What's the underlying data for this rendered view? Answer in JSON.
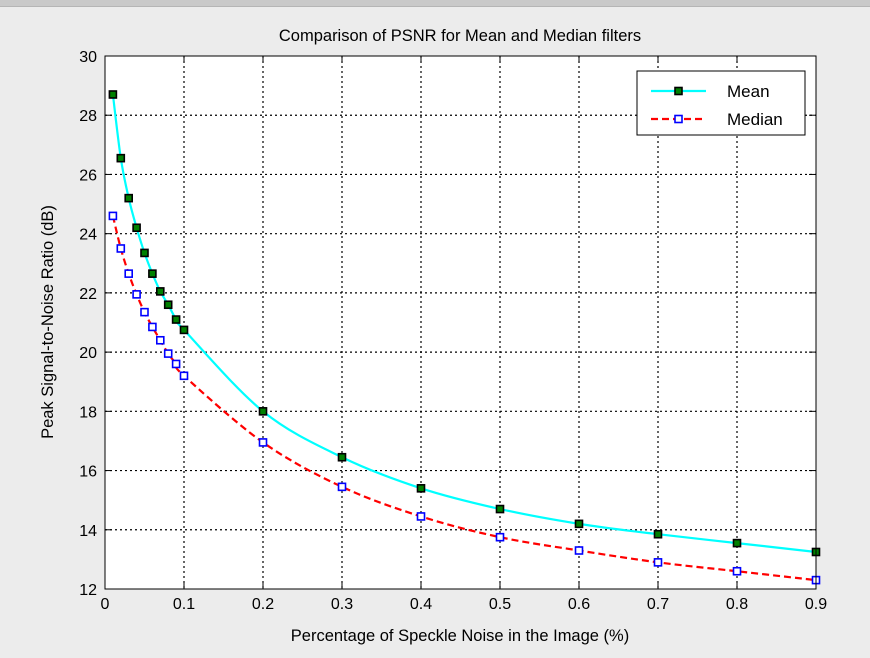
{
  "chart_data": {
    "type": "line",
    "title": "Comparison of PSNR for Mean and Median filters",
    "xlabel": "Percentage of Speckle Noise in the Image (%)",
    "ylabel": "Peak Signal-to-Noise Ratio (dB)",
    "xlim": [
      0,
      0.9
    ],
    "ylim": [
      12,
      30
    ],
    "xticks": [
      0,
      0.1,
      0.2,
      0.3,
      0.4,
      0.5,
      0.6,
      0.7,
      0.8,
      0.9
    ],
    "xtick_labels": [
      "0",
      "0.1",
      "0.2",
      "0.3",
      "0.4",
      "0.5",
      "0.6",
      "0.7",
      "0.8",
      "0.9"
    ],
    "yticks": [
      12,
      14,
      16,
      18,
      20,
      22,
      24,
      26,
      28,
      30
    ],
    "ytick_labels": [
      "12",
      "14",
      "16",
      "18",
      "20",
      "22",
      "24",
      "26",
      "28",
      "30"
    ],
    "grid": true,
    "legend_position": "top-right",
    "x": [
      0.01,
      0.02,
      0.03,
      0.04,
      0.05,
      0.06,
      0.07,
      0.08,
      0.09,
      0.1,
      0.2,
      0.3,
      0.4,
      0.5,
      0.6,
      0.7,
      0.8,
      0.9
    ],
    "series": [
      {
        "name": "Mean",
        "line_color": "#00ffff",
        "marker_edge": "#000000",
        "marker_fill": "#008000",
        "dashed": false,
        "values": [
          28.7,
          26.55,
          25.2,
          24.2,
          23.35,
          22.65,
          22.05,
          21.6,
          21.1,
          20.75,
          18.0,
          16.45,
          15.4,
          14.7,
          14.2,
          13.85,
          13.55,
          13.25
        ]
      },
      {
        "name": "Median",
        "line_color": "#ff0000",
        "marker_edge": "#0000ff",
        "marker_fill": "#ffffff",
        "dashed": true,
        "values": [
          24.6,
          23.5,
          22.65,
          21.95,
          21.35,
          20.85,
          20.4,
          19.95,
          19.6,
          19.2,
          16.95,
          15.45,
          14.45,
          13.75,
          13.3,
          12.9,
          12.6,
          12.3
        ]
      }
    ]
  }
}
